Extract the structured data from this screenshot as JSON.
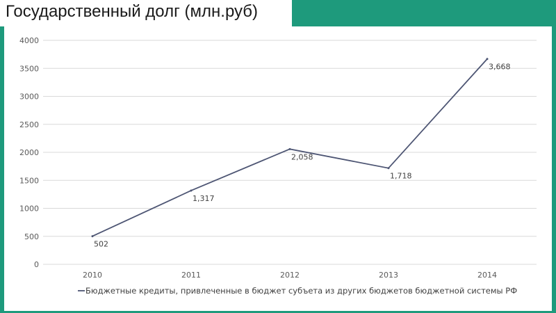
{
  "title": "Государственный долг (млн.руб)",
  "chart_data": {
    "type": "line",
    "categories": [
      "2010",
      "2011",
      "2012",
      "2013",
      "2014"
    ],
    "series": [
      {
        "name": "Бюджетные кредиты, привлеченные в бюджет субъета из других бюджетов бюджетной системы РФ",
        "values": [
          502,
          1317,
          2058,
          1718,
          3668
        ],
        "labels": [
          "502",
          "1,317",
          "2,058",
          "1,718",
          "3,668"
        ],
        "color": "#4d5573"
      }
    ],
    "ylim": [
      0,
      4000
    ],
    "yticks": [
      "0",
      "500",
      "1000",
      "1500",
      "2000",
      "2500",
      "3000",
      "3500",
      "4000"
    ],
    "grid": true,
    "legend": "bottom"
  }
}
